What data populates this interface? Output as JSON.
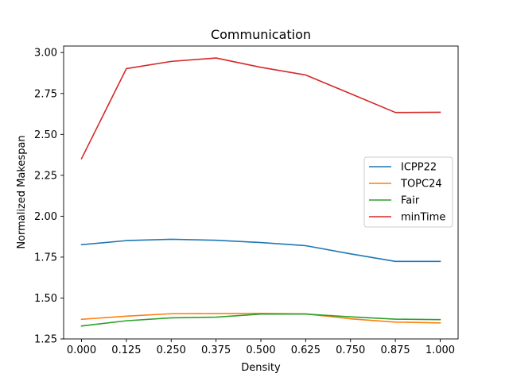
{
  "chart_data": {
    "type": "line",
    "title": "Communication",
    "xlabel": "Density",
    "ylabel": "Normalized Makespan",
    "x": [
      0.0,
      0.125,
      0.25,
      0.375,
      0.5,
      0.625,
      0.75,
      0.875,
      1.0
    ],
    "xticks": [
      "0.000",
      "0.125",
      "0.250",
      "0.375",
      "0.500",
      "0.625",
      "0.750",
      "0.875",
      "1.000"
    ],
    "xlim": [
      -0.05,
      1.05
    ],
    "ylim": [
      1.25,
      3.04
    ],
    "yticks": [
      1.25,
      1.5,
      1.75,
      2.0,
      2.25,
      2.5,
      2.75,
      3.0
    ],
    "ytick_labels": [
      "1.25",
      "1.50",
      "1.75",
      "2.00",
      "2.25",
      "2.50",
      "2.75",
      "3.00"
    ],
    "grid": false,
    "legend_position": "center-right",
    "series": [
      {
        "name": "ICPP22",
        "color": "#1f77b4",
        "values": [
          1.826,
          1.851,
          1.859,
          1.853,
          1.839,
          1.82,
          1.77,
          1.724,
          1.724
        ]
      },
      {
        "name": "TOPC24",
        "color": "#ff7f0e",
        "values": [
          1.37,
          1.389,
          1.404,
          1.405,
          1.406,
          1.403,
          1.373,
          1.353,
          1.348
        ]
      },
      {
        "name": "Fair",
        "color": "#2ca02c",
        "values": [
          1.329,
          1.361,
          1.379,
          1.383,
          1.402,
          1.402,
          1.385,
          1.371,
          1.368
        ]
      },
      {
        "name": "minTime",
        "color": "#d62728",
        "values": [
          2.352,
          2.902,
          2.946,
          2.967,
          2.91,
          2.863,
          2.749,
          2.634,
          2.635
        ]
      }
    ]
  }
}
